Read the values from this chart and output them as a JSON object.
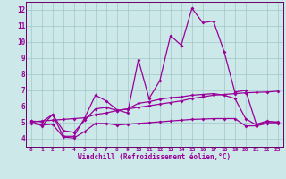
{
  "xlabel": "Windchill (Refroidissement éolien,°C)",
  "background_color": "#cce8e8",
  "grid_color": "#a0c8c8",
  "line_color": "#990099",
  "spine_color": "#660066",
  "xlim": [
    -0.5,
    23.5
  ],
  "ylim": [
    3.5,
    12.5
  ],
  "yticks": [
    4,
    5,
    6,
    7,
    8,
    9,
    10,
    11,
    12
  ],
  "xticks": [
    0,
    1,
    2,
    3,
    4,
    5,
    6,
    7,
    8,
    9,
    10,
    11,
    12,
    13,
    14,
    15,
    16,
    17,
    18,
    19,
    20,
    21,
    22,
    23
  ],
  "line1_x": [
    0,
    1,
    2,
    3,
    4,
    5,
    6,
    7,
    8,
    9,
    10,
    11,
    12,
    13,
    14,
    15,
    16,
    17,
    18,
    19,
    20,
    21,
    22,
    23
  ],
  "line1_y": [
    5.1,
    4.8,
    5.5,
    4.15,
    4.15,
    5.3,
    6.7,
    6.35,
    5.8,
    5.6,
    8.9,
    6.5,
    7.6,
    10.4,
    9.8,
    12.1,
    11.2,
    11.3,
    9.4,
    6.9,
    7.0,
    4.9,
    5.1,
    5.0
  ],
  "line2_x": [
    0,
    1,
    2,
    3,
    4,
    5,
    6,
    7,
    8,
    9,
    10,
    11,
    12,
    13,
    14,
    15,
    16,
    17,
    18,
    19,
    20,
    21,
    22,
    23
  ],
  "line2_y": [
    5.05,
    5.1,
    5.15,
    5.2,
    5.25,
    5.3,
    5.5,
    5.6,
    5.75,
    5.85,
    5.95,
    6.05,
    6.15,
    6.25,
    6.35,
    6.5,
    6.6,
    6.7,
    6.75,
    6.8,
    6.85,
    6.88,
    6.9,
    6.95
  ],
  "line3_x": [
    0,
    1,
    2,
    3,
    4,
    5,
    6,
    7,
    8,
    9,
    10,
    11,
    12,
    13,
    14,
    15,
    16,
    17,
    18,
    19,
    20,
    21,
    22,
    23
  ],
  "line3_y": [
    5.1,
    5.05,
    5.5,
    4.5,
    4.4,
    5.15,
    5.85,
    5.95,
    5.75,
    5.85,
    6.2,
    6.3,
    6.45,
    6.55,
    6.6,
    6.7,
    6.75,
    6.8,
    6.7,
    6.5,
    5.25,
    4.85,
    5.05,
    5.05
  ],
  "line4_x": [
    0,
    1,
    2,
    3,
    4,
    5,
    6,
    7,
    8,
    9,
    10,
    11,
    12,
    13,
    14,
    15,
    16,
    17,
    18,
    19,
    20,
    21,
    22,
    23
  ],
  "line4_y": [
    4.95,
    4.85,
    4.9,
    4.1,
    4.05,
    4.45,
    4.95,
    4.95,
    4.85,
    4.9,
    4.95,
    5.0,
    5.05,
    5.1,
    5.15,
    5.2,
    5.22,
    5.25,
    5.25,
    5.25,
    4.8,
    4.8,
    4.95,
    4.95
  ]
}
